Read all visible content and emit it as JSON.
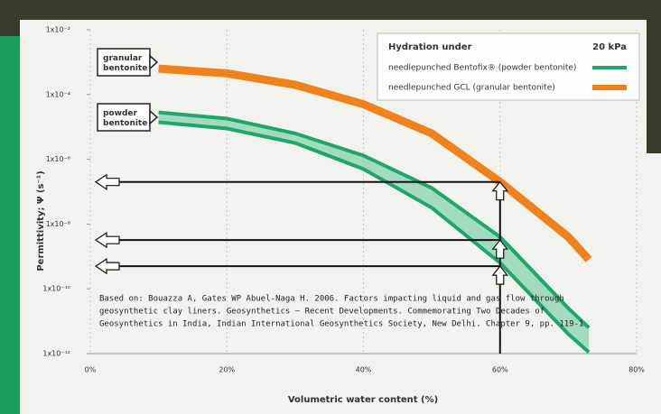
{
  "chart_data": {
    "type": "band-line",
    "y_label": "Permittivity; Ψ (s⁻¹)",
    "x_label": "Volumetric water content (%)",
    "x": [
      10,
      20,
      30,
      40,
      50,
      60,
      70,
      73
    ],
    "series": [
      {
        "name": "needlepunched GCL (granular bentonite)",
        "color": "#f0821e",
        "values": [
          0.00063,
          0.00045,
          0.0002,
          5e-05,
          6.3e-06,
          2e-07,
          4e-09,
          8e-10
        ]
      },
      {
        "name": "needlepunched Bentofix® (powder bentonite)",
        "color": "#1fa66a",
        "values": [
          2.8e-05,
          1.8e-05,
          6.3e-06,
          1.3e-06,
          1.3e-07,
          4e-09,
          2.5e-11,
          6.3e-12
        ],
        "values_lower": [
          1.4e-05,
          8.9e-06,
          3.2e-06,
          5e-07,
          3.2e-08,
          6.3e-10,
          4e-12,
          1.1e-12
        ]
      }
    ],
    "legend_title": "Hydration under",
    "legend_pressure": "20 kPa",
    "legend": "upper-right",
    "labels": [
      "granular\nbentonite",
      "powder\nbentonite"
    ],
    "arrows": {
      "x": 60,
      "y": [
        2e-07,
        3.2e-09,
        5e-10
      ]
    },
    "citation": [
      "Based on: Bouazza A, Gates WP Abuel-Naga H. 2006.  Factors impacting liquid and gas flow through",
      "geosynthetic clay liners. Geosynthetics – Recent Developments. Commemorating Two Decades of",
      "Geosynthetics in India, Indian International Geosynthetics Society, New Delhi. Chapter 9, pp. 119-1"
    ],
    "yscale": "log",
    "ylim": [
      1e-12,
      0.01
    ],
    "yticks": [
      {
        "value": 1e-12,
        "label": "1x10⁻¹²"
      },
      {
        "value": 1e-10,
        "label": "1x10⁻¹⁰"
      },
      {
        "value": 1e-08,
        "label": "1x10⁻⁸"
      },
      {
        "value": 1e-06,
        "label": "1x10⁻⁶"
      },
      {
        "value": 0.0001,
        "label": "1x10⁻⁴"
      },
      {
        "value": 0.01,
        "label": "1x10⁻²"
      }
    ],
    "xlim": [
      0,
      80
    ],
    "xticks": [
      {
        "value": 0,
        "label": "0%"
      },
      {
        "value": 20,
        "label": "20%"
      },
      {
        "value": 40,
        "label": "40%"
      },
      {
        "value": 60,
        "label": "60%"
      },
      {
        "value": 80,
        "label": "80%"
      }
    ],
    "grid": true
  }
}
